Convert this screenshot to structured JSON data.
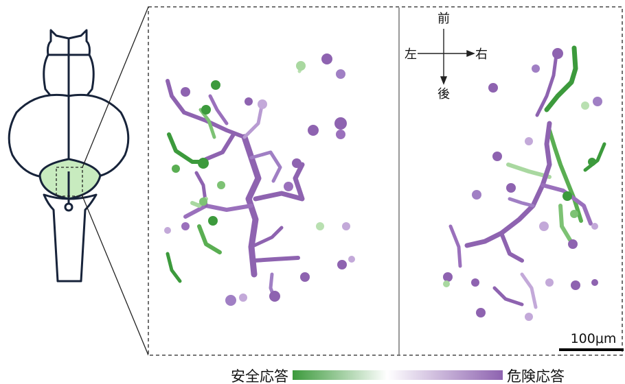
{
  "orientation": {
    "anterior": "前",
    "left": "左",
    "right": "右",
    "posterior": "後"
  },
  "scale_bar": {
    "label": "100μm"
  },
  "legend": {
    "left_label": "安全応答",
    "right_label": "危険応答",
    "colors": {
      "green": "#3c9a3c",
      "white": "#ffffff",
      "purple": "#8e63b0"
    }
  },
  "region_highlight_color": "#c8ebbf",
  "colors": {
    "purple": "#8e63b0",
    "light_purple": "#c3a9d9",
    "green": "#3c9a3c",
    "light_green": "#a9d8a0"
  }
}
